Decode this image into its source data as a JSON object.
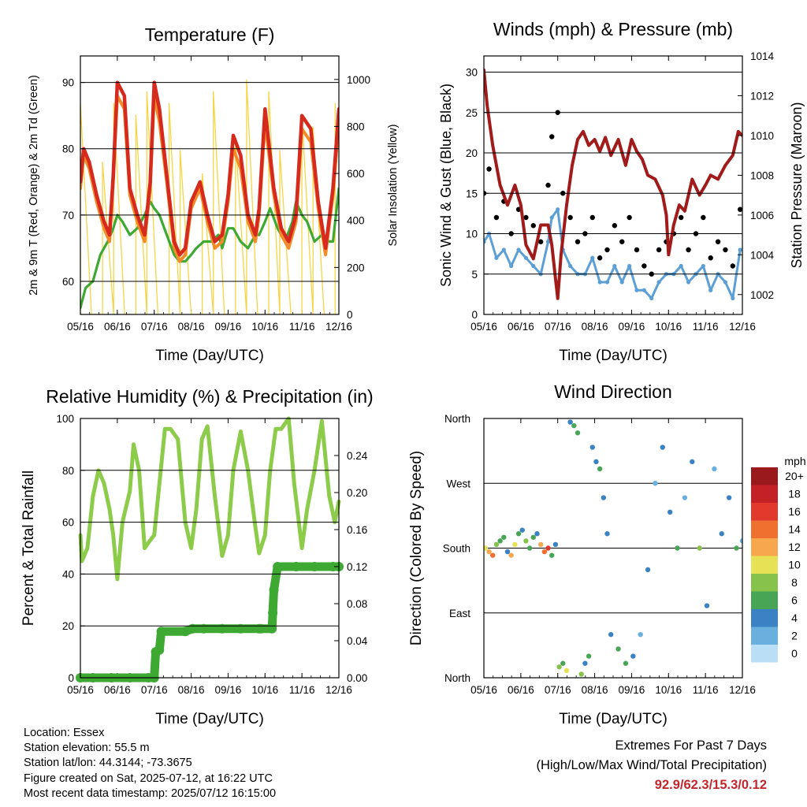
{
  "colors": {
    "red": "#d62a1e",
    "orange": "#f28c28",
    "green": "#3da832",
    "yellow": "#f5d547",
    "maroon": "#a11b1b",
    "blue": "#5b9fd6",
    "black": "#000000",
    "lightgreen": "#8dcc4b"
  },
  "chart_data": [
    {
      "id": "temperature",
      "type": "line",
      "title": "Temperature (F)",
      "xlabel": "Time (Day/UTC)",
      "ylabel": "2m & 9m T (Red, Orange) & 2m Td (Green)",
      "ylabel_right": "Solar Insolation (Yellow)",
      "x_ticks": [
        "05/16",
        "06/16",
        "07/16",
        "08/16",
        "09/16",
        "10/16",
        "11/16",
        "12/16"
      ],
      "ylim": [
        55,
        94
      ],
      "y_ticks": [
        60,
        70,
        80,
        90
      ],
      "ylim_right": [
        0,
        1100
      ],
      "y_ticks_right": [
        0,
        200,
        400,
        600,
        800,
        1000
      ],
      "x_range": [
        5.16,
        12.16
      ],
      "series": [
        {
          "color": "red",
          "x": [
            5.16,
            5.25,
            5.4,
            5.6,
            5.8,
            5.95,
            6.05,
            6.16,
            6.35,
            6.5,
            6.7,
            6.9,
            7.05,
            7.16,
            7.3,
            7.5,
            7.7,
            7.85,
            8.0,
            8.16,
            8.4,
            8.6,
            8.8,
            9.0,
            9.16,
            9.3,
            9.5,
            9.7,
            9.9,
            10.0,
            10.16,
            10.4,
            10.6,
            10.8,
            11.0,
            11.16,
            11.4,
            11.6,
            11.8,
            12.0,
            12.16
          ],
          "y": [
            75,
            80,
            78,
            73,
            69,
            67,
            76,
            90,
            88,
            74,
            70,
            67,
            75,
            90,
            86,
            76,
            66,
            64,
            65,
            72,
            75,
            70,
            66,
            67,
            73,
            82,
            79,
            70,
            67,
            71,
            86,
            74,
            68,
            66,
            70,
            85,
            83,
            72,
            65,
            74,
            86
          ]
        },
        {
          "color": "orange",
          "x": [
            5.16,
            5.25,
            5.4,
            5.6,
            5.8,
            5.95,
            6.05,
            6.16,
            6.35,
            6.5,
            6.7,
            6.9,
            7.05,
            7.16,
            7.3,
            7.5,
            7.7,
            7.85,
            8.0,
            8.16,
            8.4,
            8.6,
            8.8,
            9.0,
            9.16,
            9.3,
            9.5,
            9.7,
            9.9,
            10.0,
            10.16,
            10.4,
            10.6,
            10.8,
            11.0,
            11.16,
            11.4,
            11.6,
            11.8,
            12.0,
            12.16
          ],
          "y": [
            74,
            79,
            77,
            72,
            68,
            66,
            75,
            88,
            86,
            73,
            69,
            66,
            74,
            88,
            84,
            75,
            65,
            63,
            64,
            71,
            74,
            69,
            65,
            66,
            72,
            80,
            77,
            69,
            66,
            70,
            84,
            73,
            67,
            65,
            69,
            83,
            81,
            71,
            64,
            73,
            84
          ]
        },
        {
          "color": "green",
          "x": [
            5.16,
            5.3,
            5.5,
            5.7,
            5.9,
            6.05,
            6.16,
            6.3,
            6.5,
            6.7,
            6.9,
            7.05,
            7.16,
            7.3,
            7.5,
            7.7,
            7.85,
            8.0,
            8.16,
            8.3,
            8.5,
            8.7,
            8.9,
            9.0,
            9.16,
            9.3,
            9.5,
            9.7,
            9.9,
            10.0,
            10.16,
            10.3,
            10.5,
            10.7,
            10.9,
            11.0,
            11.16,
            11.3,
            11.5,
            11.7,
            11.9,
            12.0,
            12.16
          ],
          "y": [
            56,
            59,
            60,
            64,
            66,
            68,
            70,
            69,
            67,
            68,
            70,
            72,
            71,
            70,
            67,
            64,
            63,
            63,
            64,
            65,
            66,
            66,
            67,
            65,
            68,
            68,
            66,
            65,
            67,
            67,
            69,
            71,
            68,
            66,
            69,
            72,
            70,
            69,
            66,
            67,
            66,
            66,
            74
          ]
        },
        {
          "color": "yellow",
          "axis": "right",
          "type": "daily-peaks",
          "x": [
            5.16,
            5.46,
            5.76,
            6.06,
            6.36,
            6.66,
            6.96,
            7.26,
            7.56,
            7.86,
            8.16,
            8.46,
            8.76,
            9.06,
            9.36,
            9.66,
            9.96,
            10.26,
            10.56,
            10.86,
            11.16,
            11.46,
            11.76,
            12.06
          ],
          "y": [
            900,
            0,
            650,
            900,
            0,
            850,
            950,
            0,
            900,
            700,
            0,
            600,
            950,
            0,
            750,
            1000,
            0,
            950,
            700,
            0,
            850,
            800,
            0,
            900
          ]
        }
      ]
    },
    {
      "id": "winds",
      "type": "scatter",
      "title": "Winds (mph) & Pressure (mb)",
      "xlabel": "Time (Day/UTC)",
      "ylabel": "Sonic Wind & Gust (Blue, Black)",
      "ylabel_right": "Station Pressure (Maroon)",
      "x_ticks": [
        "05/16",
        "06/16",
        "07/16",
        "08/16",
        "09/16",
        "10/16",
        "11/16",
        "12/16"
      ],
      "ylim": [
        0,
        32
      ],
      "y_ticks": [
        0,
        5,
        10,
        15,
        20,
        25,
        30
      ],
      "ylim_right": [
        1001,
        1014
      ],
      "y_ticks_right": [
        1002,
        1004,
        1006,
        1008,
        1010,
        1012,
        1014
      ],
      "x_range": [
        5.16,
        12.16
      ],
      "series": [
        {
          "color": "black",
          "x": [
            5.16,
            5.3,
            5.5,
            5.7,
            5.9,
            6.1,
            6.3,
            6.5,
            6.7,
            6.9,
            7.0,
            7.16,
            7.3,
            7.5,
            7.7,
            7.9,
            8.1,
            8.3,
            8.5,
            8.7,
            8.9,
            9.1,
            9.3,
            9.5,
            9.7,
            9.9,
            10.1,
            10.3,
            10.5,
            10.7,
            10.9,
            11.1,
            11.3,
            11.5,
            11.7,
            11.9,
            12.1
          ],
          "y": [
            15,
            18,
            12,
            14,
            10,
            13,
            12,
            11,
            9,
            16,
            22,
            25,
            15,
            12,
            9,
            10,
            12,
            7,
            8,
            11,
            9,
            12,
            8,
            6,
            5,
            8,
            9,
            10,
            12,
            8,
            10,
            12,
            7,
            9,
            8,
            6,
            13
          ]
        },
        {
          "color": "blue",
          "x": [
            5.16,
            5.3,
            5.5,
            5.7,
            5.9,
            6.1,
            6.3,
            6.5,
            6.7,
            6.9,
            7.0,
            7.16,
            7.3,
            7.5,
            7.7,
            7.9,
            8.1,
            8.3,
            8.5,
            8.7,
            8.9,
            9.1,
            9.3,
            9.5,
            9.7,
            9.9,
            10.1,
            10.3,
            10.5,
            10.7,
            10.9,
            11.1,
            11.3,
            11.5,
            11.7,
            11.9,
            12.1
          ],
          "y": [
            9,
            10,
            7,
            8,
            6,
            8,
            7,
            6,
            5,
            9,
            12,
            13,
            8,
            6,
            5,
            5,
            7,
            4,
            4,
            6,
            4,
            6,
            3,
            3,
            2,
            4,
            5,
            5,
            6,
            4,
            5,
            6,
            3,
            5,
            4,
            2,
            8
          ]
        },
        {
          "color": "maroon",
          "axis": "right",
          "x": [
            5.16,
            5.25,
            5.4,
            5.6,
            5.8,
            6.0,
            6.16,
            6.3,
            6.5,
            6.7,
            6.9,
            7.0,
            7.1,
            7.16,
            7.25,
            7.4,
            7.55,
            7.7,
            7.85,
            8.0,
            8.16,
            8.3,
            8.45,
            8.6,
            8.8,
            9.0,
            9.16,
            9.3,
            9.45,
            9.6,
            9.8,
            10.0,
            10.1,
            10.16,
            10.3,
            10.45,
            10.6,
            10.8,
            11.0,
            11.16,
            11.3,
            11.5,
            11.7,
            11.9,
            12.05,
            12.16
          ],
          "y": [
            1013.3,
            1011.5,
            1009.5,
            1007.5,
            1006.5,
            1007.5,
            1006.5,
            1004.5,
            1003.8,
            1005.5,
            1005.5,
            1004.5,
            1002.8,
            1001.8,
            1004.0,
            1006.5,
            1008.5,
            1009.8,
            1010.2,
            1009.5,
            1009.8,
            1009.2,
            1009.9,
            1009.0,
            1009.8,
            1008.5,
            1009.8,
            1009.2,
            1008.8,
            1008.0,
            1007.8,
            1007.0,
            1006.0,
            1004.0,
            1005.5,
            1006.5,
            1006.2,
            1007.8,
            1007.0,
            1007.5,
            1008.0,
            1007.8,
            1008.5,
            1009.0,
            1010.2,
            1010.0
          ]
        }
      ]
    },
    {
      "id": "humidity",
      "type": "line",
      "title": "Relative Humidity (%) & Precipitation (in)",
      "xlabel": "Time (Day/UTC)",
      "ylabel": "Percent & Total Rainfall",
      "x_ticks": [
        "05/16",
        "06/16",
        "07/16",
        "08/16",
        "09/16",
        "10/16",
        "11/16",
        "12/16"
      ],
      "ylim": [
        0,
        100
      ],
      "y_ticks": [
        0,
        20,
        40,
        60,
        80,
        100
      ],
      "ylim_right": [
        0,
        0.28
      ],
      "y_ticks_right": [
        "0.00",
        "0.04",
        "0.08",
        "0.12",
        "0.16",
        "0.20",
        "0.24"
      ],
      "x_range": [
        5.16,
        12.16
      ],
      "series": [
        {
          "color": "lightgreen",
          "x": [
            5.16,
            5.2,
            5.35,
            5.5,
            5.65,
            5.8,
            5.95,
            6.05,
            6.16,
            6.3,
            6.5,
            6.6,
            6.75,
            6.9,
            7.0,
            7.16,
            7.3,
            7.45,
            7.6,
            7.8,
            8.0,
            8.16,
            8.3,
            8.45,
            8.6,
            8.8,
            9.0,
            9.16,
            9.3,
            9.5,
            9.7,
            9.9,
            10.0,
            10.16,
            10.3,
            10.45,
            10.6,
            10.8,
            10.95,
            11.16,
            11.3,
            11.5,
            11.7,
            11.9,
            12.05,
            12.16
          ],
          "y": [
            55,
            45,
            50,
            70,
            80,
            75,
            65,
            55,
            38,
            60,
            72,
            90,
            80,
            50,
            52,
            55,
            75,
            96,
            96,
            92,
            60,
            50,
            65,
            92,
            97,
            70,
            47,
            55,
            80,
            95,
            80,
            58,
            48,
            55,
            80,
            96,
            96,
            100,
            75,
            50,
            65,
            80,
            99,
            70,
            60,
            68
          ]
        },
        {
          "color": "green",
          "axis": "right",
          "type": "step",
          "x": [
            5.16,
            5.5,
            6.0,
            6.5,
            7.0,
            7.16,
            7.2,
            7.3,
            7.35,
            8.0,
            8.2,
            8.5,
            9.0,
            9.5,
            10.0,
            10.05,
            10.35,
            10.37,
            10.4,
            10.5,
            11.0,
            11.5,
            12.0,
            12.16
          ],
          "y": [
            0,
            0,
            0,
            0,
            0,
            0,
            0.028,
            0.03,
            0.05,
            0.05,
            0.053,
            0.053,
            0.053,
            0.053,
            0.053,
            0.053,
            0.053,
            0.07,
            0.095,
            0.12,
            0.12,
            0.12,
            0.12,
            0.12
          ]
        }
      ]
    },
    {
      "id": "direction",
      "type": "scatter",
      "title": "Wind Direction",
      "xlabel": "Time (Day/UTC)",
      "ylabel": "Direction (Colored By Speed)",
      "x_ticks": [
        "05/16",
        "06/16",
        "07/16",
        "08/16",
        "09/16",
        "10/16",
        "11/16",
        "12/16"
      ],
      "y_ticks": [
        "North",
        "East",
        "South",
        "West",
        "North"
      ],
      "ylim": [
        0,
        360
      ],
      "x_range": [
        5.16,
        12.16
      ],
      "legend": {
        "title": "mph",
        "labels": [
          "20+",
          "18",
          "16",
          "14",
          "12",
          "10",
          "8",
          "6",
          "4",
          "2",
          "0"
        ],
        "colors": [
          "#99191c",
          "#c42127",
          "#e1392b",
          "#f0702f",
          "#f7a84e",
          "#e6e155",
          "#87c24a",
          "#49a556",
          "#3a82c4",
          "#6ab0df",
          "#b9def5"
        ]
      },
      "series": [
        {
          "x": [
            5.2,
            5.3,
            5.4,
            5.5,
            5.6,
            5.7,
            5.8,
            5.9,
            6.0,
            6.1,
            6.2,
            6.3,
            6.4,
            6.5,
            6.6,
            6.7,
            6.8,
            6.9,
            7.0,
            7.1
          ],
          "y": [
            180,
            175,
            170,
            185,
            190,
            195,
            175,
            170,
            185,
            200,
            205,
            190,
            180,
            195,
            200,
            185,
            175,
            180,
            170,
            185
          ],
          "speed": [
            10,
            12,
            14,
            8,
            6,
            5,
            4,
            12,
            10,
            6,
            4,
            8,
            6,
            5,
            4,
            12,
            14,
            16,
            6,
            4
          ]
        },
        {
          "x": [
            7.2,
            7.3,
            7.4,
            7.5,
            7.6,
            7.7,
            7.8,
            7.9,
            8.0,
            8.1,
            8.2,
            8.3,
            8.4,
            8.5
          ],
          "y": [
            15,
            20,
            10,
            355,
            350,
            340,
            5,
            20,
            30,
            320,
            300,
            290,
            250,
            200
          ],
          "speed": [
            8,
            6,
            10,
            4,
            6,
            5,
            8,
            4,
            6,
            3,
            4,
            5,
            3,
            4
          ]
        },
        {
          "x": [
            8.6,
            8.8,
            9.0,
            9.2,
            9.4,
            9.6,
            9.8,
            10.0,
            10.2,
            10.4,
            10.6,
            10.8,
            11.0,
            11.2,
            11.4,
            11.6,
            11.8,
            12.0,
            12.16
          ],
          "y": [
            60,
            40,
            20,
            30,
            60,
            150,
            270,
            320,
            230,
            180,
            250,
            300,
            180,
            100,
            290,
            200,
            250,
            180,
            190
          ],
          "speed": [
            4,
            6,
            5,
            4,
            2,
            3,
            2,
            4,
            3,
            5,
            2,
            4,
            8,
            3,
            2,
            4,
            3,
            5,
            2
          ]
        }
      ]
    }
  ],
  "info": {
    "location": "Location: Essex",
    "elevation": "Station elevation: 55.5 m",
    "latlon": "Station lat/lon: 44.3144; -73.3675",
    "created": "Figure created on Sat, 2025-07-12, at 16:22 UTC",
    "recent": "Most recent data timestamp: 2025/07/12 16:15:00"
  },
  "extremes": {
    "title": "Extremes For Past 7 Days",
    "subtitle": "(High/Low/Max Wind/Total Precipitation)",
    "values": "92.9/62.3/15.3/0.12"
  }
}
